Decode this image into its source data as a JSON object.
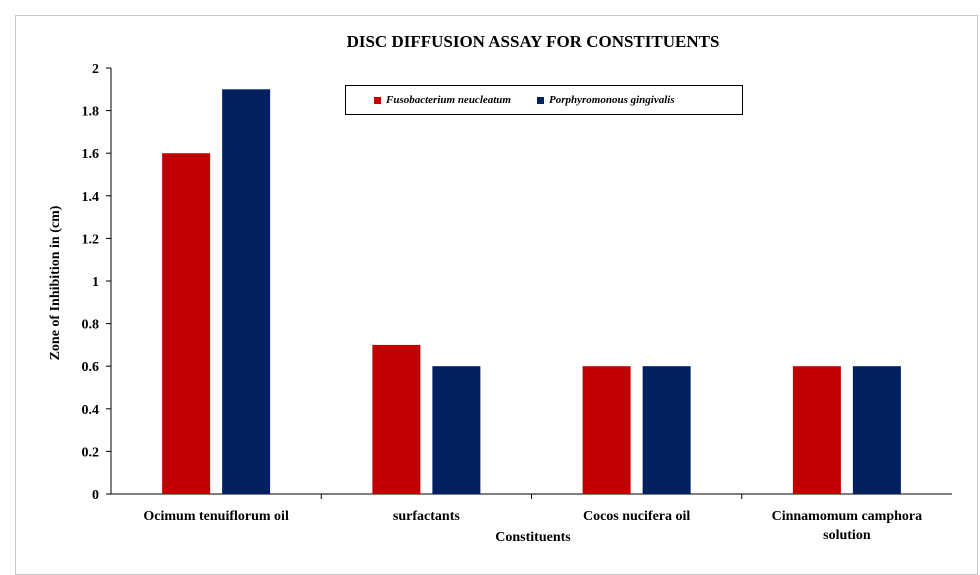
{
  "chart_data": {
    "type": "bar",
    "title": "DISC DIFFUSION ASSAY FOR CONSTITUENTS",
    "xlabel": "Constituents",
    "ylabel": "Zone of Inhibition in (cm)",
    "categories": [
      [
        "Ocimum tenuiflorum oil"
      ],
      [
        "surfactants"
      ],
      [
        "Cocos nucifera oil"
      ],
      [
        "Cinnamomum camphora",
        "solution"
      ]
    ],
    "series": [
      {
        "name": "Fusobacterium neucleatum",
        "color": "#c00000",
        "values": [
          1.6,
          0.7,
          0.6,
          0.6
        ]
      },
      {
        "name": "Porphyromonous gingivalis",
        "color": "#002060",
        "values": [
          1.9,
          0.6,
          0.6,
          0.6
        ]
      }
    ],
    "ylim": [
      0,
      2
    ],
    "yticks": [
      "0",
      "0.2",
      "0.4",
      "0.6",
      "0.8",
      "1",
      "1.2",
      "1.4",
      "1.6",
      "1.8",
      "2"
    ],
    "grid": false,
    "legend_position": "top-center"
  }
}
